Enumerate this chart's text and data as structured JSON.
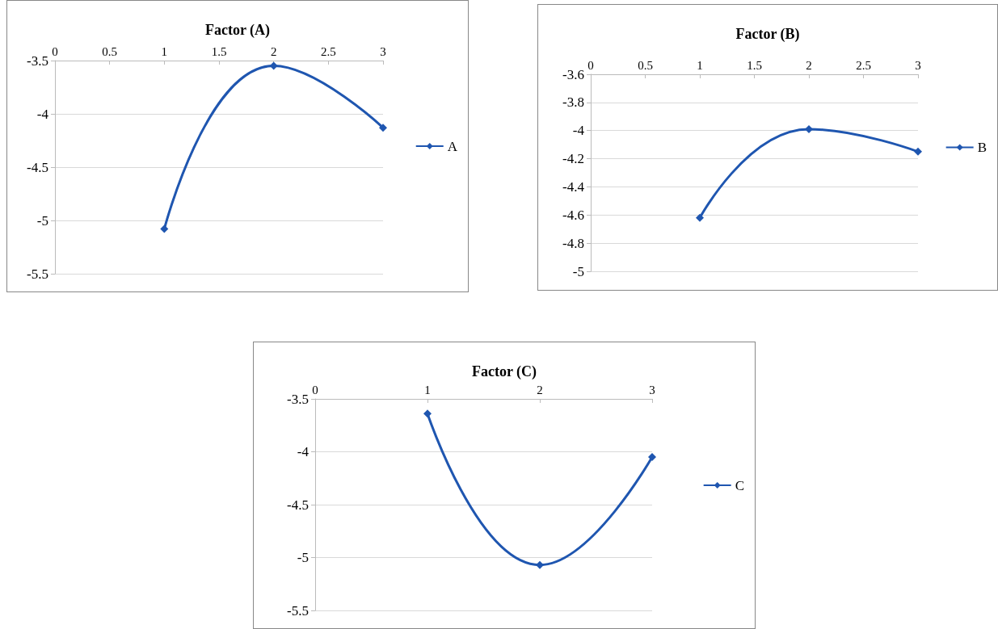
{
  "chart_data": [
    {
      "type": "line",
      "title": "Factor (A)",
      "x": [
        1,
        2,
        3
      ],
      "series": [
        {
          "name": "A",
          "color": "#1f56b0",
          "values": [
            -5.08,
            -3.55,
            -4.13
          ]
        }
      ],
      "xlim": [
        0,
        3
      ],
      "xticks": [
        0,
        0.5,
        1,
        1.5,
        2,
        2.5,
        3
      ],
      "ylim": [
        -5.5,
        -3.5
      ],
      "yticks": [
        -5.5,
        -5,
        -4.5,
        -4,
        -3.5
      ],
      "grid": "y",
      "legend": "right",
      "marker": "diamond"
    },
    {
      "type": "line",
      "title": "Factor (B)",
      "x": [
        1,
        2,
        3
      ],
      "series": [
        {
          "name": "B",
          "color": "#1f56b0",
          "values": [
            -4.62,
            -3.99,
            -4.15
          ]
        }
      ],
      "xlim": [
        0,
        3
      ],
      "xticks": [
        0,
        0.5,
        1,
        1.5,
        2,
        2.5,
        3
      ],
      "ylim": [
        -5,
        -3.6
      ],
      "yticks": [
        -5,
        -4.8,
        -4.6,
        -4.4,
        -4.2,
        -4,
        -3.8,
        -3.6
      ],
      "grid": "y",
      "legend": "right",
      "marker": "diamond"
    },
    {
      "type": "line",
      "title": "Factor (C)",
      "x": [
        1,
        2,
        3
      ],
      "series": [
        {
          "name": "C",
          "color": "#1f56b0",
          "values": [
            -3.64,
            -5.07,
            -4.05
          ]
        }
      ],
      "xlim": [
        0,
        3
      ],
      "xticks": [
        0,
        1,
        2,
        3
      ],
      "ylim": [
        -5.5,
        -3.5
      ],
      "yticks": [
        -5.5,
        -5,
        -4.5,
        -4,
        -3.5
      ],
      "grid": "y",
      "legend": "right",
      "marker": "diamond"
    }
  ]
}
